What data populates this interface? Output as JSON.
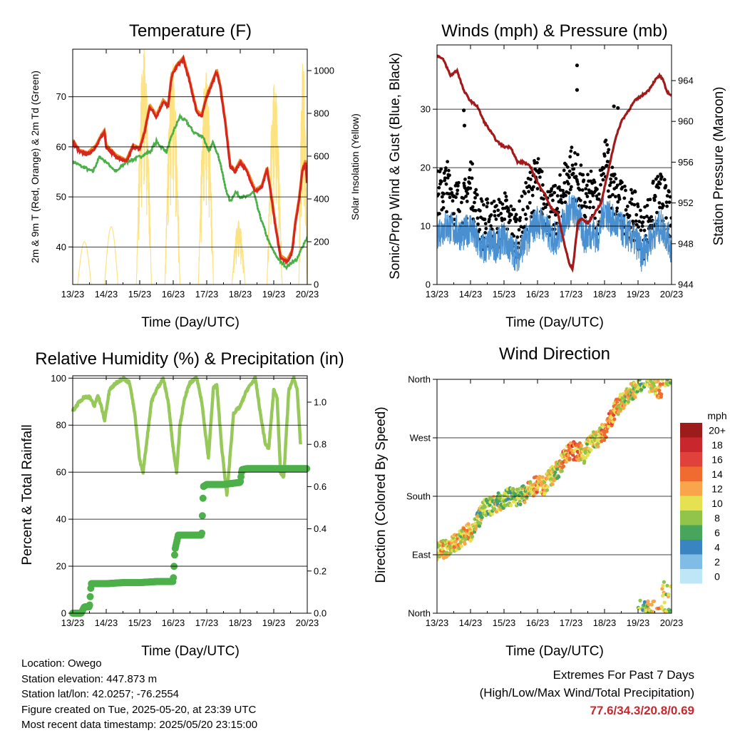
{
  "colors": {
    "temp2m": "#d7261e",
    "temp9m": "#f28c28",
    "dew": "#4bb04a",
    "solar": "#fde281",
    "gust": "#000000",
    "wind": "#4a90d0",
    "pressure": "#a11b1b",
    "rh": "#97c95a",
    "precip": "#4db04a",
    "grid": "#000000"
  },
  "time_ticks": [
    "13/23",
    "14/23",
    "15/23",
    "16/23",
    "17/23",
    "18/23",
    "19/23",
    "20/23"
  ],
  "temperature_panel": {
    "title": "Temperature (F)",
    "xlabel": "Time (Day/UTC)",
    "ylabel": "2m & 9m T (Red, Orange) & 2m Td (Green)",
    "y2label": "Solar Insolation (Yellow)",
    "yticks": [
      "40",
      "50",
      "60",
      "70"
    ],
    "y2ticks": [
      "0",
      "200",
      "400",
      "600",
      "800",
      "1000"
    ]
  },
  "wind_panel": {
    "title": "Winds (mph) & Pressure (mb)",
    "xlabel": "Time (Day/UTC)",
    "ylabel": "Sonic/Prop Wind & Gust (Blue, Black)",
    "y2label": "Station Pressure (Maroon)",
    "yticks": [
      "0",
      "10",
      "20",
      "30"
    ],
    "y2ticks": [
      "944",
      "948",
      "952",
      "956",
      "960",
      "964"
    ]
  },
  "humidity_panel": {
    "title": "Relative Humidity (%) & Precipitation (in)",
    "xlabel": "Time (Day/UTC)",
    "ylabel": "Percent & Total Rainfall",
    "yticks": [
      "0",
      "20",
      "40",
      "60",
      "80",
      "100"
    ],
    "y2ticks": [
      "0.0",
      "0.2",
      "0.4",
      "0.6",
      "0.8",
      "1.0"
    ]
  },
  "direction_panel": {
    "title": "Wind Direction",
    "xlabel": "Time (Day/UTC)",
    "ylabel": "Direction (Colored By Speed)",
    "yticks": [
      "North",
      "East",
      "South",
      "West",
      "North"
    ],
    "legend_title": "mph",
    "legend_labels": [
      "20+",
      "18",
      "16",
      "14",
      "12",
      "10",
      "8",
      "6",
      "4",
      "2",
      "0"
    ],
    "legend_colors": [
      "#9c1b1b",
      "#c8282d",
      "#e0413a",
      "#ef6b30",
      "#f9a64a",
      "#e6e150",
      "#93c44a",
      "#48a55c",
      "#3a84c2",
      "#7fbde6",
      "#bfe6f7"
    ]
  },
  "chart_data": [
    {
      "type": "line",
      "title": "Temperature (F)",
      "xlabel": "Time (Day/UTC)",
      "ylabel": "2m & 9m T (Red, Orange) & 2m Td (Green)",
      "y2label": "Solar Insolation (Yellow)",
      "xlim": [
        0,
        7
      ],
      "ylim": [
        32.5,
        79.5
      ],
      "y2lim": [
        0,
        1100
      ],
      "series": [
        {
          "key": "temperature",
          "axis": "left",
          "x": [
            0,
            0.2,
            0.45,
            0.7,
            0.85,
            0.95,
            1.0,
            1.3,
            1.6,
            1.8,
            2.0,
            2.15,
            2.3,
            2.5,
            2.7,
            2.85,
            2.95,
            3.1,
            3.3,
            3.45,
            3.7,
            3.85,
            4.0,
            4.3,
            4.4,
            4.55,
            4.7,
            4.85,
            5.0,
            5.2,
            5.45,
            5.65,
            5.8,
            5.95,
            6.05,
            6.2,
            6.4,
            6.55,
            6.65,
            6.75,
            6.85,
            6.95,
            7.0
          ],
          "y": [
            61,
            59,
            58.5,
            60,
            62,
            63,
            60,
            58,
            57,
            60,
            59.5,
            63,
            68,
            66,
            69,
            68,
            74,
            76,
            77.5,
            74,
            67,
            66,
            70,
            75,
            72,
            65,
            56,
            55,
            57,
            55,
            51,
            52,
            55.5,
            49,
            44,
            38,
            37,
            39,
            45,
            49,
            55,
            57,
            52
          ]
        },
        {
          "key": "dewpoint",
          "axis": "left",
          "x": [
            0,
            0.3,
            0.6,
            0.8,
            1.0,
            1.3,
            1.6,
            1.8,
            2.0,
            2.3,
            2.5,
            2.8,
            3.0,
            3.2,
            3.4,
            3.6,
            3.9,
            4.05,
            4.2,
            4.4,
            4.55,
            4.7,
            4.85,
            5.0,
            5.2,
            5.4,
            5.55,
            5.7,
            5.85,
            6.0,
            6.2,
            6.4,
            6.55,
            6.7,
            6.85,
            7.0
          ],
          "y": [
            57,
            56,
            55,
            58,
            57,
            55,
            57,
            57.5,
            58,
            59,
            61,
            59,
            63,
            66,
            65,
            63,
            62,
            59,
            61,
            57,
            52,
            49,
            51,
            50,
            50,
            51,
            47,
            44,
            41,
            39,
            37,
            36,
            37,
            37.5,
            40,
            42
          ]
        },
        {
          "key": "solar",
          "axis": "right",
          "days": [
            {
              "x0": 0.15,
              "x1": 0.55,
              "peak": 200,
              "jagged": false
            },
            {
              "x0": 0.95,
              "x1": 1.35,
              "peak": 270,
              "jagged": false
            },
            {
              "x0": 1.9,
              "x1": 2.35,
              "peak": 1100,
              "jagged": true
            },
            {
              "x0": 2.75,
              "x1": 3.2,
              "peak": 1050,
              "jagged": true
            },
            {
              "x0": 3.75,
              "x1": 4.2,
              "peak": 1000,
              "jagged": true
            },
            {
              "x0": 4.75,
              "x1": 5.15,
              "peak": 300,
              "jagged": true
            },
            {
              "x0": 5.8,
              "x1": 6.25,
              "peak": 950,
              "jagged": true
            },
            {
              "x0": 6.75,
              "x1": 7.0,
              "peak": 1050,
              "jagged": true
            }
          ]
        }
      ]
    },
    {
      "type": "scatter",
      "title": "Winds (mph) & Pressure (mb)",
      "xlabel": "Time (Day/UTC)",
      "ylabel": "Sonic/Prop Wind & Gust (Blue, Black)",
      "y2label": "Station Pressure (Maroon)",
      "xlim": [
        0,
        7
      ],
      "ylim": [
        0,
        41
      ],
      "y2lim": [
        944,
        967.5
      ],
      "series": [
        {
          "key": "wind_mean",
          "axis": "left",
          "x": [
            0,
            0.3,
            0.6,
            0.8,
            1.0,
            1.2,
            1.4,
            1.6,
            1.8,
            2.0,
            2.2,
            2.4,
            2.6,
            2.8,
            3.0,
            3.2,
            3.4,
            3.6,
            3.8,
            4.0,
            4.2,
            4.4,
            4.6,
            4.8,
            5.0,
            5.2,
            5.4,
            5.6,
            5.8,
            6.0,
            6.1,
            6.3,
            6.5,
            6.7,
            6.9,
            7.0
          ],
          "y": [
            9,
            10,
            9,
            8.5,
            10,
            7,
            6,
            7,
            6.5,
            8,
            6,
            5,
            7,
            9,
            11,
            10,
            8,
            8,
            11,
            13,
            12,
            8,
            9,
            8,
            13,
            11,
            10,
            9,
            8,
            7,
            5,
            7,
            9,
            10,
            8,
            6
          ]
        },
        {
          "key": "wind_gust",
          "axis": "left",
          "x": [
            0,
            0.3,
            0.6,
            0.8,
            1.0,
            1.2,
            1.4,
            1.6,
            1.8,
            2.0,
            2.2,
            2.4,
            2.6,
            2.8,
            3.0,
            3.2,
            3.4,
            3.6,
            3.8,
            4.0,
            4.2,
            4.4,
            4.6,
            4.8,
            5.0,
            5.2,
            5.4,
            5.6,
            5.8,
            6.0,
            6.1,
            6.3,
            6.5,
            6.7,
            6.9,
            7.0
          ],
          "y": [
            15,
            17,
            14,
            13,
            18,
            12,
            10,
            11,
            10,
            12,
            10,
            9,
            12,
            16,
            18,
            14,
            12,
            13,
            17,
            20,
            18,
            14,
            15,
            13,
            22,
            17,
            14,
            13,
            12,
            11,
            8,
            11,
            14,
            15,
            12,
            10
          ]
        },
        {
          "key": "wind_gust_outliers",
          "axis": "left",
          "x": [
            4.18,
            4.18,
            0.8,
            0.82,
            5.28,
            5.4
          ],
          "y": [
            37.5,
            33.3,
            29.8,
            27.2,
            30.5,
            30.2
          ]
        },
        {
          "key": "pressure",
          "axis": "right",
          "x": [
            0,
            0.2,
            0.4,
            0.6,
            0.8,
            1.0,
            1.2,
            1.4,
            1.6,
            1.8,
            2.0,
            2.2,
            2.4,
            2.6,
            2.8,
            3.0,
            3.2,
            3.4,
            3.6,
            3.8,
            3.95,
            4.05,
            4.2,
            4.3,
            4.5,
            4.7,
            4.9,
            5.1,
            5.3,
            5.5,
            5.7,
            5.9,
            6.1,
            6.3,
            6.5,
            6.65,
            6.75,
            6.85,
            7.0
          ],
          "y": [
            966.5,
            966,
            964.5,
            965,
            963,
            962,
            961.5,
            960,
            959,
            958,
            957.5,
            957.5,
            956,
            956,
            955.5,
            954,
            953,
            951.5,
            951,
            948,
            946,
            945.5,
            950,
            950.5,
            950,
            951,
            952,
            955,
            958,
            960,
            961,
            962,
            962.5,
            963,
            964,
            964.5,
            964,
            963,
            962.5
          ]
        }
      ]
    },
    {
      "type": "line",
      "title": "Relative Humidity (%) & Precipitation (in)",
      "xlabel": "Time (Day/UTC)",
      "ylabel": "Percent & Total Rainfall",
      "xlim": [
        0,
        7
      ],
      "ylim": [
        0,
        101
      ],
      "y2lim": [
        0,
        1.125
      ],
      "series": [
        {
          "key": "humidity",
          "axis": "left",
          "x": [
            0,
            0.2,
            0.35,
            0.5,
            0.65,
            0.75,
            0.85,
            0.95,
            1.1,
            1.3,
            1.5,
            1.7,
            1.85,
            2.0,
            2.1,
            2.2,
            2.35,
            2.5,
            2.7,
            2.85,
            3.0,
            3.1,
            3.2,
            3.35,
            3.5,
            3.7,
            3.85,
            4.0,
            4.05,
            4.2,
            4.3,
            4.45,
            4.6,
            4.8,
            5.0,
            5.2,
            5.3,
            5.45,
            5.6,
            5.75,
            5.85,
            6.0,
            6.1,
            6.2,
            6.3,
            6.45,
            6.6,
            6.7,
            6.8
          ],
          "y": [
            86,
            90,
            92,
            92,
            88,
            93,
            88,
            82,
            95,
            98,
            100,
            98,
            85,
            65,
            60,
            72,
            90,
            95,
            100,
            90,
            70,
            60,
            80,
            92,
            98,
            100,
            90,
            72,
            66,
            96,
            97,
            70,
            50,
            85,
            88,
            95,
            97,
            100,
            85,
            72,
            70,
            95,
            92,
            60,
            58,
            95,
            100,
            95,
            72
          ]
        },
        {
          "key": "precipitation",
          "axis": "right",
          "x": [
            0,
            0.25,
            0.35,
            0.5,
            0.55,
            1.0,
            1.5,
            2.0,
            2.5,
            3.0,
            3.05,
            3.15,
            3.2,
            3.5,
            3.85,
            3.9,
            4.0,
            4.2,
            4.5,
            5.0,
            5.05,
            5.2,
            6.0,
            6.5,
            7.0
          ],
          "y": [
            0,
            0,
            0.03,
            0.03,
            0.14,
            0.14,
            0.145,
            0.145,
            0.15,
            0.15,
            0.3,
            0.37,
            0.37,
            0.37,
            0.37,
            0.6,
            0.61,
            0.61,
            0.61,
            0.62,
            0.68,
            0.685,
            0.685,
            0.685,
            0.685
          ]
        }
      ]
    },
    {
      "type": "scatter",
      "title": "Wind Direction",
      "xlabel": "Time (Day/UTC)",
      "ylabel": "Direction (Colored By Speed)",
      "xlim": [
        0,
        7
      ],
      "ylim": [
        0,
        360
      ],
      "series": [
        {
          "key": "direction",
          "axis": "left",
          "x": [
            0.0,
            0.3,
            0.6,
            0.8,
            1.0,
            1.2,
            1.4,
            1.6,
            1.8,
            2.0,
            2.2,
            2.4,
            2.6,
            2.8,
            3.0,
            3.2,
            3.4,
            3.6,
            3.8,
            4.0,
            4.2,
            4.4,
            4.6,
            4.8,
            5.0,
            5.2,
            5.4,
            5.6,
            5.8,
            6.0,
            6.2,
            6.4,
            6.6,
            6.8,
            7.0
          ],
          "y": [
            95,
            100,
            110,
            120,
            125,
            140,
            160,
            165,
            170,
            175,
            180,
            178,
            183,
            190,
            200,
            195,
            210,
            220,
            240,
            250,
            250,
            245,
            265,
            270,
            280,
            300,
            320,
            330,
            340,
            350,
            360,
            350,
            345,
            335,
            10
          ]
        }
      ]
    }
  ],
  "footer": {
    "location": "Location: Owego",
    "elevation": "Station elevation: 447.873 m",
    "latlon": "Station lat/lon: 42.0257; -76.2554",
    "created": "Figure created on Tue, 2025-05-20, at 23:39 UTC",
    "recent": "Most recent data timestamp: 2025/05/20 23:15:00",
    "extremes_title": "Extremes For Past 7 Days",
    "extremes_sub": "(High/Low/Max Wind/Total Precipitation)",
    "extremes_values": "77.6/34.3/20.8/0.69"
  }
}
